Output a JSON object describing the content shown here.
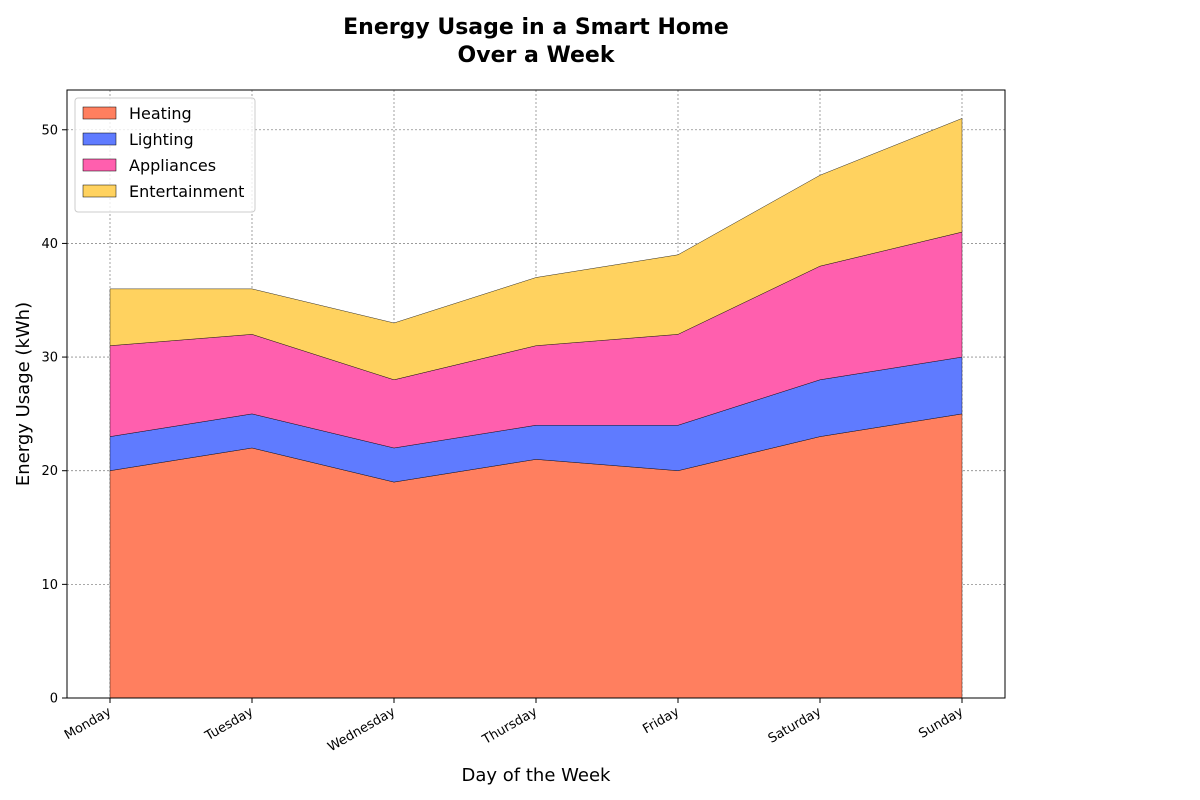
{
  "chart_data": {
    "type": "area",
    "stacked": true,
    "title_lines": [
      "Energy Usage in a Smart Home",
      "Over a Week"
    ],
    "xlabel": "Day of the Week",
    "ylabel": "Energy Usage (kWh)",
    "categories": [
      "Monday",
      "Tuesday",
      "Wednesday",
      "Thursday",
      "Friday",
      "Saturday",
      "Sunday"
    ],
    "ylim": [
      0,
      53.5
    ],
    "yticks": [
      0,
      10,
      20,
      30,
      40,
      50
    ],
    "grid": true,
    "legend_position": "top-left",
    "series": [
      {
        "name": "Heating",
        "color": "#ff7f5f",
        "values": [
          20,
          22,
          19,
          21,
          20,
          23,
          25
        ]
      },
      {
        "name": "Lighting",
        "color": "#5f7bff",
        "values": [
          3,
          3,
          3,
          3,
          4,
          5,
          5
        ]
      },
      {
        "name": "Appliances",
        "color": "#ff5fae",
        "values": [
          8,
          7,
          6,
          7,
          8,
          10,
          11
        ]
      },
      {
        "name": "Entertainment",
        "color": "#ffd25f",
        "values": [
          5,
          4,
          5,
          6,
          7,
          8,
          10
        ]
      }
    ]
  }
}
